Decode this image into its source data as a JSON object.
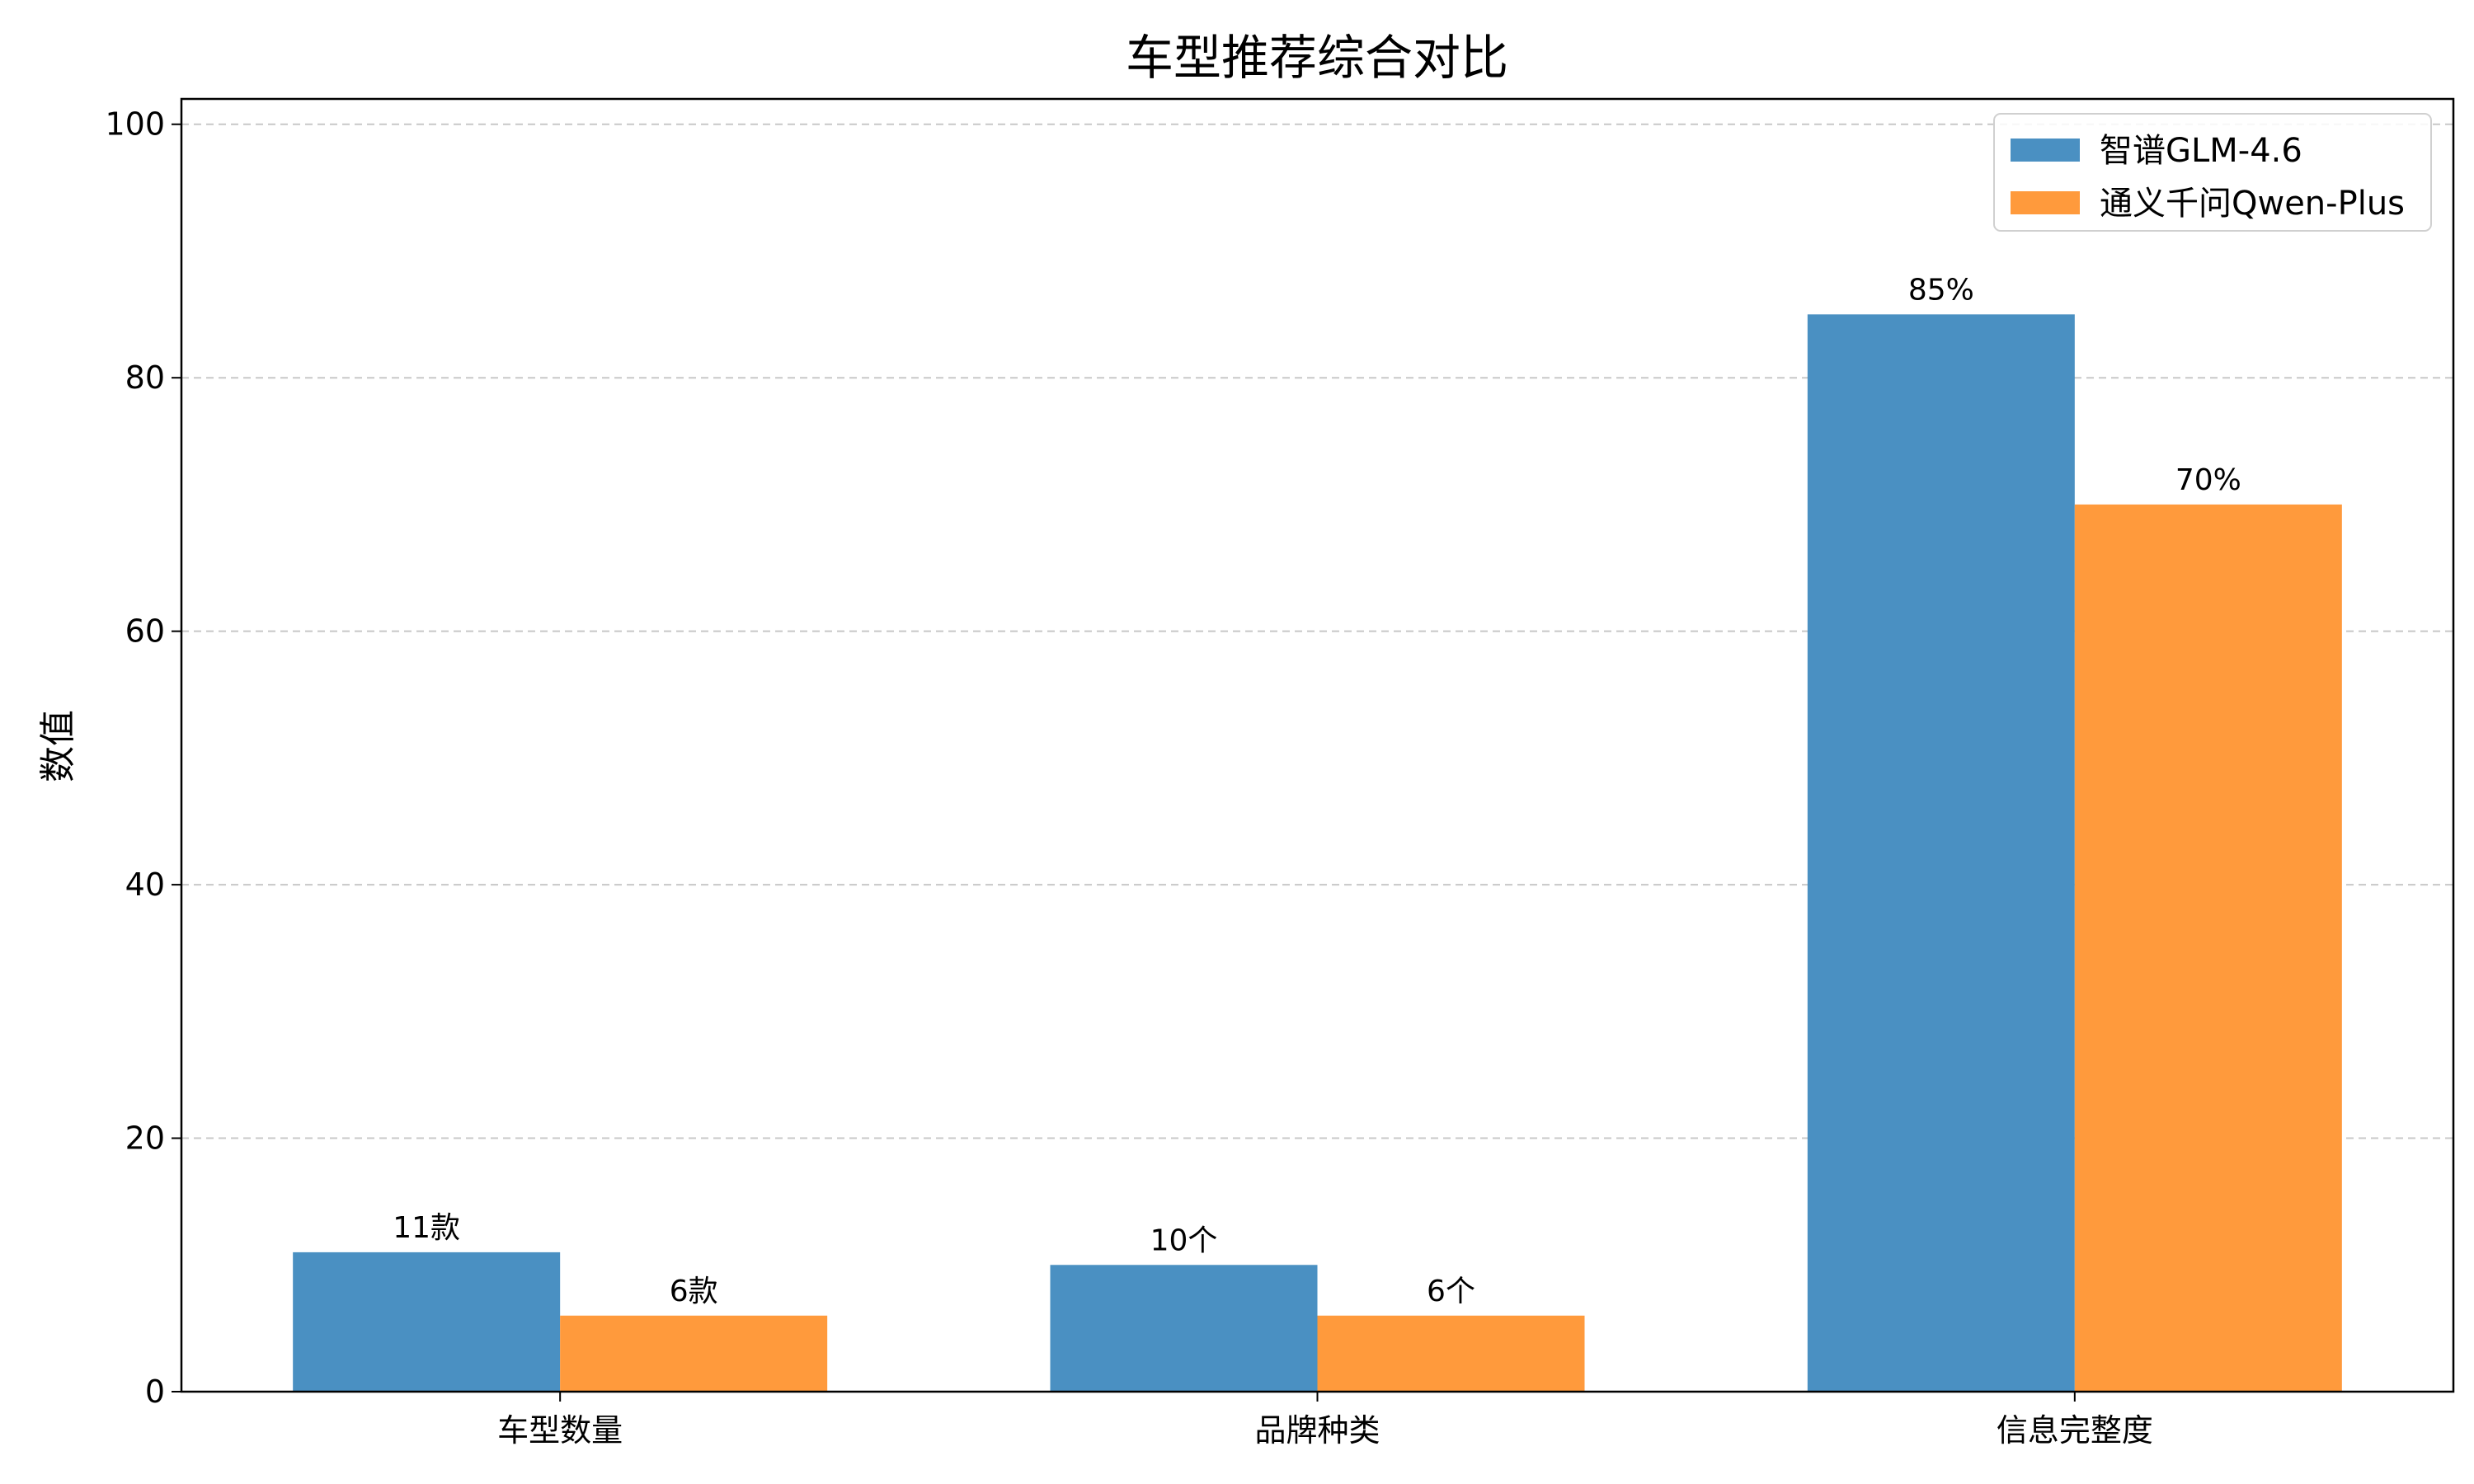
{
  "chart_data": {
    "type": "bar",
    "title": "车型推荐综合对比",
    "xlabel": "",
    "ylabel": "数值",
    "categories": [
      "车型数量",
      "品牌种类",
      "信息完整度"
    ],
    "ylim": [
      0,
      102
    ],
    "yticks": [
      0,
      20,
      40,
      60,
      80,
      100
    ],
    "grid": "y-dashed",
    "legend_position": "top-right",
    "series": [
      {
        "name": "智谱GLM-4.6",
        "color": "#4a90c2",
        "values": [
          11,
          10,
          85
        ],
        "labels": [
          "11款",
          "10个",
          "85%"
        ]
      },
      {
        "name": "通义千问Qwen-Plus",
        "color": "#ff9a3c",
        "values": [
          6,
          6,
          70
        ],
        "labels": [
          "6款",
          "6个",
          "70%"
        ]
      }
    ]
  }
}
